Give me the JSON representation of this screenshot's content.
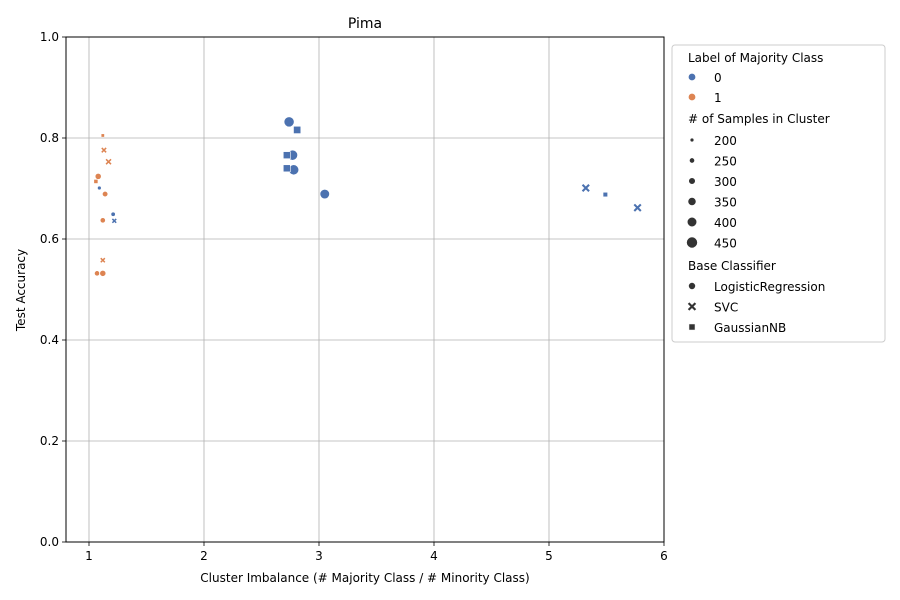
{
  "chart_data": {
    "type": "scatter",
    "title": "Pima",
    "xlabel": "Cluster Imbalance (# Majority Class / # Minority Class)",
    "ylabel": "Test Accuracy",
    "xlim": [
      0.8,
      6
    ],
    "ylim": [
      0,
      1
    ],
    "xticks": [
      1,
      2,
      3,
      4,
      5,
      6
    ],
    "yticks": [
      0.0,
      0.2,
      0.4,
      0.6,
      0.8,
      1.0
    ],
    "xtick_labels": [
      "1",
      "2",
      "3",
      "4",
      "5",
      "6"
    ],
    "ytick_labels": [
      "0.0",
      "0.2",
      "0.4",
      "0.6",
      "0.8",
      "1.0"
    ],
    "grid": true,
    "legend_placement": "outside-right",
    "colors": {
      "0": "#4c72b0",
      "1": "#dd8452"
    },
    "legend": {
      "hue_title": "Label of Majority Class",
      "hue_items": [
        {
          "label": "0",
          "color": "#4c72b0"
        },
        {
          "label": "1",
          "color": "#dd8452"
        }
      ],
      "size_title": "# of Samples in Cluster",
      "size_items": [
        "200",
        "250",
        "300",
        "350",
        "400",
        "450"
      ],
      "size_values": [
        200,
        250,
        300,
        350,
        400,
        450
      ],
      "style_title": "Base Classifier",
      "style_items": [
        {
          "label": "LogisticRegression",
          "marker": "circle"
        },
        {
          "label": "SVC",
          "marker": "x"
        },
        {
          "label": "GaussianNB",
          "marker": "square"
        }
      ]
    },
    "points": [
      {
        "x": 2.74,
        "y": 0.832,
        "label": "0",
        "samples": 420,
        "classifier": "LogisticRegression"
      },
      {
        "x": 2.81,
        "y": 0.816,
        "label": "0",
        "samples": 360,
        "classifier": "GaussianNB"
      },
      {
        "x": 2.77,
        "y": 0.766,
        "label": "0",
        "samples": 420,
        "classifier": "LogisticRegression"
      },
      {
        "x": 2.72,
        "y": 0.766,
        "label": "0",
        "samples": 350,
        "classifier": "GaussianNB"
      },
      {
        "x": 2.78,
        "y": 0.737,
        "label": "0",
        "samples": 420,
        "classifier": "LogisticRegression"
      },
      {
        "x": 2.72,
        "y": 0.74,
        "label": "0",
        "samples": 350,
        "classifier": "GaussianNB"
      },
      {
        "x": 3.05,
        "y": 0.689,
        "label": "0",
        "samples": 400,
        "classifier": "LogisticRegression"
      },
      {
        "x": 5.32,
        "y": 0.701,
        "label": "0",
        "samples": 300,
        "classifier": "SVC"
      },
      {
        "x": 5.49,
        "y": 0.688,
        "label": "0",
        "samples": 250,
        "classifier": "GaussianNB"
      },
      {
        "x": 5.77,
        "y": 0.662,
        "label": "0",
        "samples": 300,
        "classifier": "SVC"
      },
      {
        "x": 1.09,
        "y": 0.701,
        "label": "0",
        "samples": 200,
        "classifier": "LogisticRegression"
      },
      {
        "x": 1.21,
        "y": 0.649,
        "label": "0",
        "samples": 220,
        "classifier": "LogisticRegression"
      },
      {
        "x": 1.22,
        "y": 0.636,
        "label": "0",
        "samples": 200,
        "classifier": "SVC"
      },
      {
        "x": 1.12,
        "y": 0.805,
        "label": "1",
        "samples": 200,
        "classifier": "GaussianNB"
      },
      {
        "x": 1.13,
        "y": 0.776,
        "label": "1",
        "samples": 220,
        "classifier": "SVC"
      },
      {
        "x": 1.17,
        "y": 0.753,
        "label": "1",
        "samples": 240,
        "classifier": "SVC"
      },
      {
        "x": 1.08,
        "y": 0.724,
        "label": "1",
        "samples": 280,
        "classifier": "LogisticRegression"
      },
      {
        "x": 1.06,
        "y": 0.714,
        "label": "1",
        "samples": 230,
        "classifier": "GaussianNB"
      },
      {
        "x": 1.14,
        "y": 0.689,
        "label": "1",
        "samples": 260,
        "classifier": "LogisticRegression"
      },
      {
        "x": 1.12,
        "y": 0.637,
        "label": "1",
        "samples": 250,
        "classifier": "LogisticRegression"
      },
      {
        "x": 1.12,
        "y": 0.558,
        "label": "1",
        "samples": 210,
        "classifier": "SVC"
      },
      {
        "x": 1.07,
        "y": 0.532,
        "label": "1",
        "samples": 250,
        "classifier": "LogisticRegression"
      },
      {
        "x": 1.12,
        "y": 0.532,
        "label": "1",
        "samples": 280,
        "classifier": "LogisticRegression"
      }
    ]
  }
}
